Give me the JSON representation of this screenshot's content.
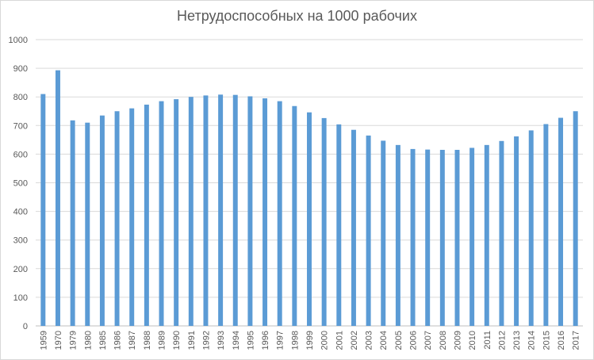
{
  "chart_data": {
    "type": "bar",
    "title": "Нетрудоспособных на 1000 рабочих",
    "xlabel": "",
    "ylabel": "",
    "ylim": [
      0,
      1000
    ],
    "yticks": [
      0,
      100,
      200,
      300,
      400,
      500,
      600,
      700,
      800,
      900,
      1000
    ],
    "grid": "horizontal",
    "legend": "none",
    "color": "#5b9bd5",
    "categories": [
      "1959",
      "1970",
      "1979",
      "1980",
      "1985",
      "1986",
      "1987",
      "1988",
      "1989",
      "1990",
      "1991",
      "1992",
      "1993",
      "1994",
      "1995",
      "1996",
      "1997",
      "1998",
      "1999",
      "2000",
      "2001",
      "2002",
      "2003",
      "2004",
      "2005",
      "2006",
      "2007",
      "2008",
      "2009",
      "2010",
      "2011",
      "2012",
      "2013",
      "2014",
      "2015",
      "2016",
      "2017"
    ],
    "values": [
      810,
      893,
      718,
      710,
      735,
      750,
      760,
      773,
      785,
      792,
      800,
      805,
      808,
      807,
      802,
      795,
      785,
      768,
      746,
      726,
      704,
      685,
      665,
      647,
      632,
      618,
      616,
      615,
      615,
      622,
      632,
      646,
      662,
      683,
      705,
      727,
      750
    ]
  }
}
